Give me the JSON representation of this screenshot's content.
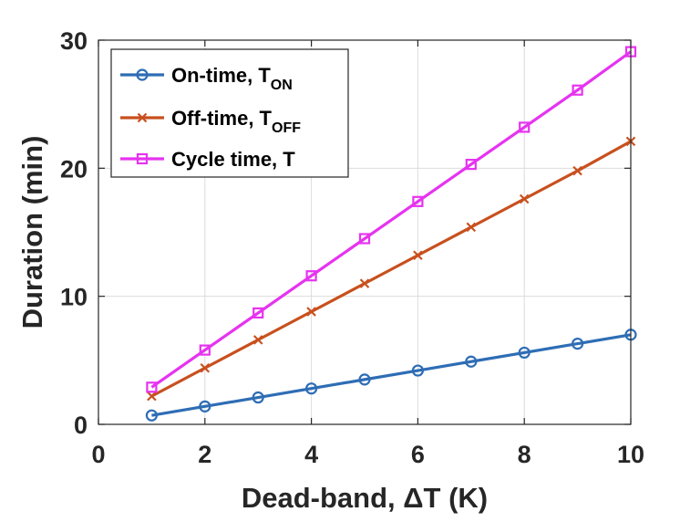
{
  "chart_data": {
    "type": "line",
    "title": "",
    "xlabel": "Dead-band, ΔT (K)",
    "ylabel": "Duration (min)",
    "xlim": [
      0,
      10
    ],
    "ylim": [
      0,
      30
    ],
    "xticks": [
      0,
      2,
      4,
      6,
      8,
      10
    ],
    "yticks": [
      0,
      10,
      20,
      30
    ],
    "grid": true,
    "legend_position": "top-left",
    "x": [
      1,
      2,
      3,
      4,
      5,
      6,
      7,
      8,
      9,
      10
    ],
    "series": [
      {
        "name": "On-time, T",
        "subscript": "ON",
        "color": "#2e6db5",
        "marker": "circle",
        "values": [
          0.7,
          1.4,
          2.1,
          2.8,
          3.5,
          4.2,
          4.9,
          5.6,
          6.3,
          7.0
        ]
      },
      {
        "name": "Off-time, T",
        "subscript": "OFF",
        "color": "#c8501e",
        "marker": "x",
        "values": [
          2.2,
          4.4,
          6.6,
          8.8,
          11.0,
          13.2,
          15.4,
          17.6,
          19.8,
          22.1
        ]
      },
      {
        "name": "Cycle time, T",
        "subscript": "",
        "color": "#e633f0",
        "marker": "square",
        "values": [
          2.9,
          5.8,
          8.7,
          11.6,
          14.5,
          17.4,
          20.3,
          23.2,
          26.1,
          29.1
        ]
      }
    ]
  }
}
